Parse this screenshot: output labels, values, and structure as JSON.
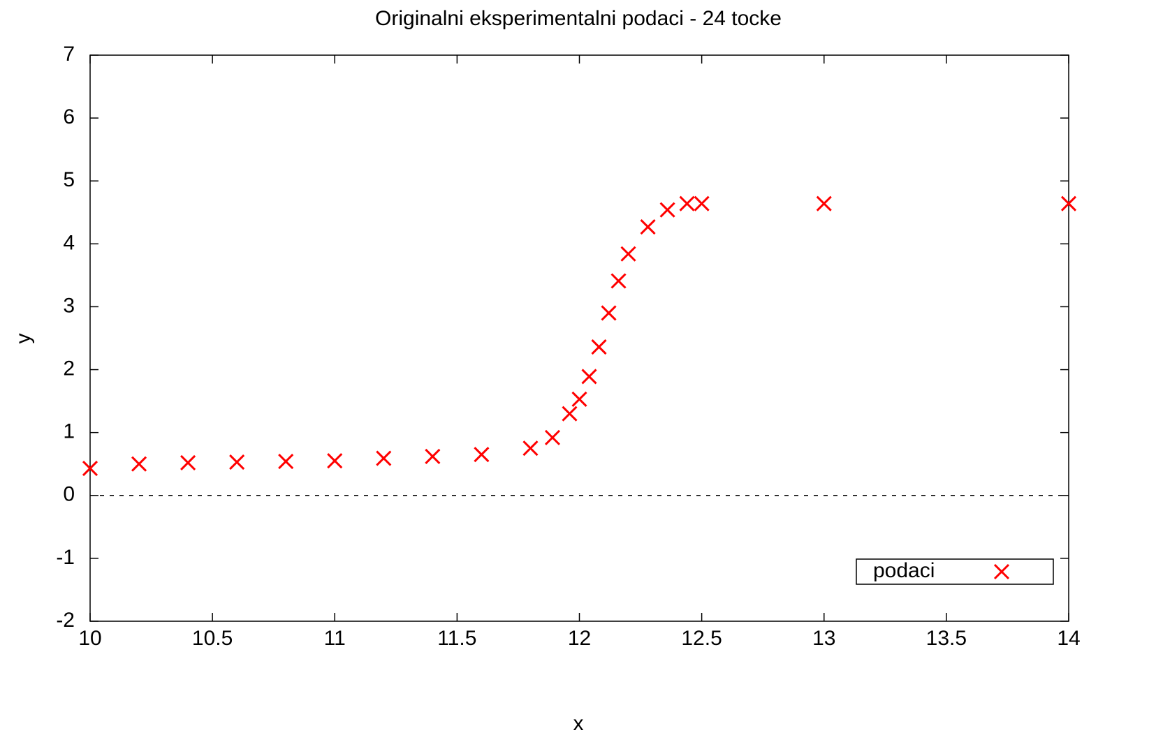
{
  "chart_data": {
    "type": "scatter",
    "title": "Originalni eksperimentalni podaci - 24 tocke",
    "x_label": "x",
    "y_label": "y",
    "series": [
      {
        "name": "podaci",
        "color": "#ff0000",
        "x": [
          10,
          10.2,
          10.4,
          10.6,
          10.8,
          11,
          11.2,
          11.4,
          11.6,
          11.8,
          11.89,
          11.96,
          12,
          12.04,
          12.08,
          12.12,
          12.16,
          12.2,
          12.28,
          12.36,
          12.44,
          12.5,
          13,
          14
        ],
        "values": [
          0.43,
          0.5,
          0.52,
          0.53,
          0.54,
          0.55,
          0.59,
          0.62,
          0.65,
          0.75,
          0.92,
          1.3,
          1.53,
          1.89,
          2.36,
          2.9,
          3.41,
          3.84,
          4.27,
          4.54,
          4.64,
          4.64,
          4.64,
          4.64
        ]
      }
    ],
    "xlim": [
      10,
      14
    ],
    "xticks": [
      10,
      10.5,
      11,
      11.5,
      12,
      12.5,
      13,
      13.5,
      14
    ],
    "ylim": [
      -2,
      7
    ],
    "yticks": [
      -2,
      -1,
      0,
      1,
      2,
      3,
      4,
      5,
      6,
      7
    ],
    "zeroaxis": true,
    "legend": "bottom right"
  }
}
